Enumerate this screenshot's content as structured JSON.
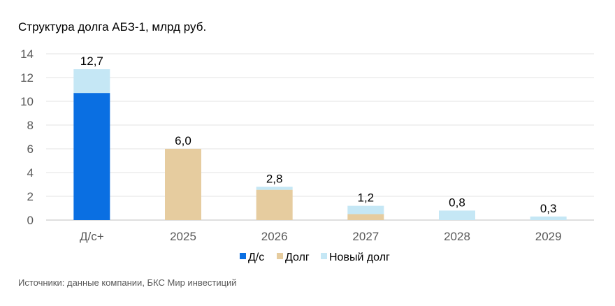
{
  "chart_data": {
    "type": "bar",
    "stacked": true,
    "title": "Структура долга АБЗ-1, млрд руб.",
    "categories": [
      "Д/с+",
      "2025",
      "2026",
      "2027",
      "2028",
      "2029"
    ],
    "series": [
      {
        "name": "Д/с",
        "values": [
          10.7,
          0,
          0,
          0,
          0,
          0
        ],
        "color": "#0a6fe2"
      },
      {
        "name": "Долг",
        "values": [
          0,
          6.0,
          2.55,
          0.5,
          0,
          0
        ],
        "color": "#e6cc9f"
      },
      {
        "name": "Новый долг",
        "values": [
          2.0,
          0,
          0.25,
          0.7,
          0.8,
          0.3
        ],
        "color": "#c5e7f5"
      }
    ],
    "totals_labels": [
      "12,7",
      "6,0",
      "2,8",
      "1,2",
      "0,8",
      "0,3"
    ],
    "totals": [
      12.7,
      6.0,
      2.8,
      1.2,
      0.8,
      0.3
    ],
    "ylim": [
      0,
      14
    ],
    "yticks": [
      "0",
      "2",
      "4",
      "6",
      "8",
      "10",
      "12",
      "14"
    ],
    "grid": true,
    "legend_position": "bottom"
  },
  "footer": {
    "source": "Источники: данные компании, БКС Мир инвестиций"
  }
}
